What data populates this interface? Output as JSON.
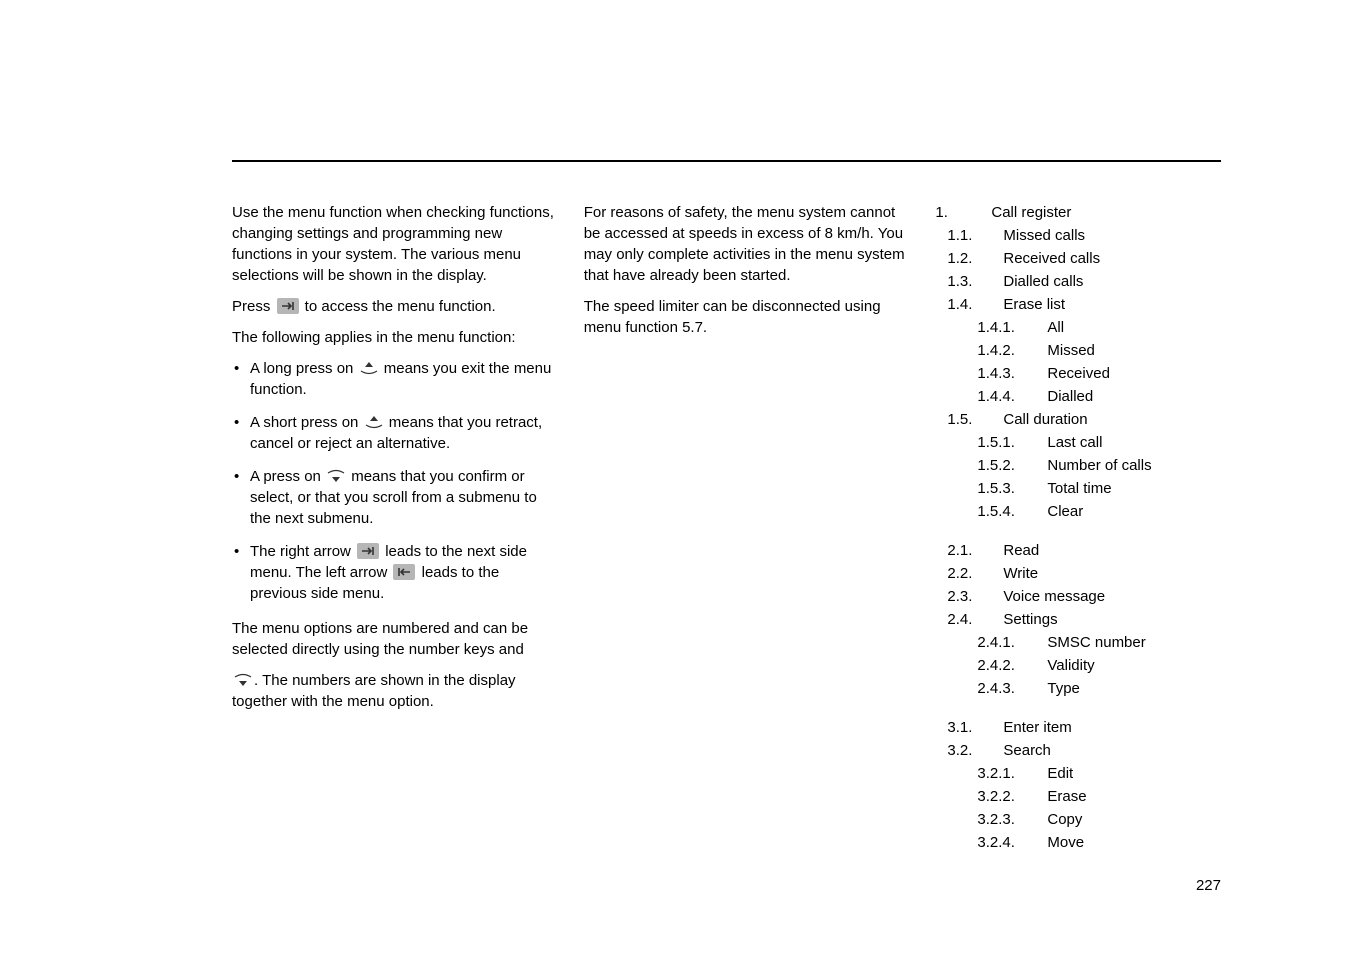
{
  "col1": {
    "intro": "Use the menu function when checking functions, changing settings and programming new functions in your system. The various menu selections will be shown in the display.",
    "press_pre": "Press ",
    "press_post": " to access the menu function.",
    "following": "The following applies in the menu function:",
    "bullets": [
      {
        "pre": "A long press on ",
        "icon": "nav-up",
        "post": " means you exit the menu function."
      },
      {
        "pre": "A short press on ",
        "icon": "nav-up",
        "post": " means that you retract, cancel or reject an alternative."
      },
      {
        "pre": "A press on ",
        "icon": "nav-down",
        "post": " means that you confirm or select, or that you scroll from a submenu to the next submenu."
      },
      {
        "pre": "The right arrow ",
        "icon": "right-arrow",
        "mid": " leads to the next side menu. The left arrow ",
        "icon2": "left-arrow",
        "post": " leads to the previous side menu."
      }
    ],
    "shortcut1": "The menu options are numbered and can be selected directly using the number keys and",
    "shortcut2_pre": "",
    "shortcut2_post": ". The numbers are shown in the display together with the menu option."
  },
  "col2": {
    "p1": "For reasons of safety, the menu system cannot be accessed at speeds in excess of 8 km/h. You may only complete activities in the menu system that have already been started.",
    "p2": "The speed limiter can be disconnected using menu function 5.7."
  },
  "menu": [
    {
      "lvl": 1,
      "n": "1.",
      "t": "Call register"
    },
    {
      "lvl": 2,
      "n": "1.1.",
      "t": "Missed calls"
    },
    {
      "lvl": 2,
      "n": "1.2.",
      "t": "Received calls"
    },
    {
      "lvl": 2,
      "n": "1.3.",
      "t": "Dialled calls"
    },
    {
      "lvl": 2,
      "n": "1.4.",
      "t": "Erase list"
    },
    {
      "lvl": 3,
      "n": "1.4.1.",
      "t": "All"
    },
    {
      "lvl": 3,
      "n": "1.4.2.",
      "t": "Missed"
    },
    {
      "lvl": 3,
      "n": "1.4.3.",
      "t": "Received"
    },
    {
      "lvl": 3,
      "n": "1.4.4.",
      "t": "Dialled"
    },
    {
      "lvl": 2,
      "n": "1.5.",
      "t": "Call duration"
    },
    {
      "lvl": 3,
      "n": "1.5.1.",
      "t": "Last call"
    },
    {
      "lvl": 3,
      "n": "1.5.2.",
      "t": "Number of calls"
    },
    {
      "lvl": 3,
      "n": "1.5.3.",
      "t": "Total time"
    },
    {
      "lvl": 3,
      "n": "1.5.4.",
      "t": "Clear"
    },
    {
      "gap": true
    },
    {
      "lvl": 2,
      "n": "2.1.",
      "t": "Read"
    },
    {
      "lvl": 2,
      "n": "2.2.",
      "t": "Write"
    },
    {
      "lvl": 2,
      "n": "2.3.",
      "t": "Voice message"
    },
    {
      "lvl": 2,
      "n": "2.4.",
      "t": "Settings"
    },
    {
      "lvl": 3,
      "n": "2.4.1.",
      "t": "SMSC number"
    },
    {
      "lvl": 3,
      "n": "2.4.2.",
      "t": "Validity"
    },
    {
      "lvl": 3,
      "n": "2.4.3.",
      "t": "Type"
    },
    {
      "gap": true
    },
    {
      "lvl": 2,
      "n": "3.1.",
      "t": "Enter item"
    },
    {
      "lvl": 2,
      "n": "3.2.",
      "t": "Search"
    },
    {
      "lvl": 3,
      "n": "3.2.1.",
      "t": "Edit"
    },
    {
      "lvl": 3,
      "n": "3.2.2.",
      "t": "Erase"
    },
    {
      "lvl": 3,
      "n": "3.2.3.",
      "t": "Copy"
    },
    {
      "lvl": 3,
      "n": "3.2.4.",
      "t": "Move"
    }
  ],
  "page_number": "227",
  "colors": {
    "text": "#000000",
    "bg": "#ffffff",
    "icon_bg": "#b6b6b6",
    "icon_fg": "#333333",
    "rule": "#000000"
  }
}
